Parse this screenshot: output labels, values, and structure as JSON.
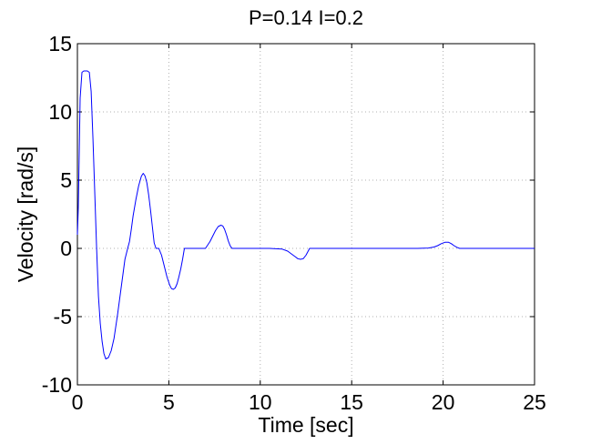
{
  "chart_data": {
    "type": "line",
    "title": "P=0.14 I=0.2",
    "xlabel": "Time [sec]",
    "ylabel": "Velocity [rad/s]",
    "xlim": [
      0,
      25
    ],
    "ylim": [
      -10,
      15
    ],
    "xticks": [
      0,
      5,
      10,
      15,
      20,
      25
    ],
    "yticks": [
      -10,
      -5,
      0,
      5,
      10,
      15
    ],
    "xtick_labels": [
      "0",
      "5",
      "10",
      "15",
      "20",
      "25"
    ],
    "ytick_labels": [
      "-10",
      "-5",
      "0",
      "5",
      "10",
      "15"
    ],
    "grid": true,
    "series": [
      {
        "color": "#0000ff",
        "x": [
          0,
          0.05,
          0.15,
          0.25,
          0.35,
          0.45,
          0.55,
          0.65,
          0.75,
          0.85,
          0.95,
          1.05,
          1.15,
          1.25,
          1.35,
          1.45,
          1.55,
          1.7,
          1.85,
          2.0,
          2.2,
          2.4,
          2.6,
          2.75,
          2.85,
          2.95,
          3.05,
          3.2,
          3.35,
          3.5,
          3.6,
          3.7,
          3.8,
          3.9,
          4.0,
          4.1,
          4.2,
          4.3,
          4.45,
          4.6,
          4.75,
          4.9,
          5.05,
          5.15,
          5.25,
          5.35,
          5.45,
          5.55,
          5.65,
          5.75,
          5.85,
          6.2,
          6.6,
          7.0,
          7.1,
          7.25,
          7.4,
          7.55,
          7.7,
          7.85,
          7.95,
          8.05,
          8.15,
          8.25,
          8.35,
          8.45,
          8.6,
          10.5,
          11.2,
          11.5,
          11.7,
          11.9,
          12.05,
          12.2,
          12.35,
          12.5,
          12.6,
          12.7,
          14.5,
          18.6,
          19.2,
          19.5,
          19.7,
          19.9,
          20.1,
          20.3,
          20.45,
          20.6,
          20.75,
          20.9,
          21.2,
          25
        ],
        "y": [
          1,
          3,
          11,
          12.9,
          13.0,
          13.0,
          13.0,
          12.9,
          11.5,
          8,
          4,
          0,
          -3.5,
          -5.5,
          -6.8,
          -7.7,
          -8.1,
          -8.0,
          -7.5,
          -6.6,
          -4.8,
          -2.8,
          -0.8,
          0,
          0.5,
          1.4,
          2.4,
          3.6,
          4.6,
          5.3,
          5.5,
          5.3,
          4.8,
          3.9,
          2.8,
          1.6,
          0.4,
          0,
          0,
          -0.5,
          -1.3,
          -2.1,
          -2.7,
          -2.95,
          -3.0,
          -2.9,
          -2.6,
          -2.1,
          -1.5,
          -0.8,
          0,
          0,
          0,
          0,
          0.2,
          0.5,
          0.9,
          1.3,
          1.6,
          1.7,
          1.65,
          1.4,
          1.0,
          0.55,
          0.2,
          0,
          0,
          0,
          -0.05,
          -0.2,
          -0.4,
          -0.6,
          -0.75,
          -0.8,
          -0.75,
          -0.5,
          -0.25,
          0,
          0,
          0,
          0.03,
          0.1,
          0.2,
          0.35,
          0.45,
          0.45,
          0.35,
          0.2,
          0.08,
          0,
          0,
          0
        ]
      }
    ]
  }
}
